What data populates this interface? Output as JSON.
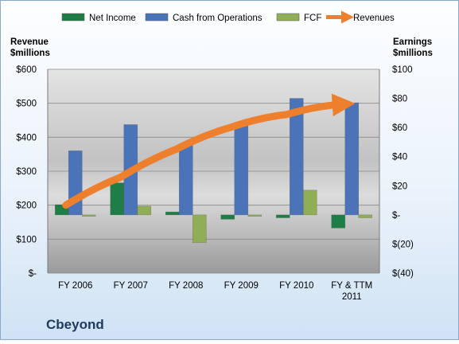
{
  "chart_data": {
    "type": "bar",
    "title": "Cbeyond",
    "categories": [
      "FY 2006",
      "FY 2007",
      "FY 2008",
      "FY 2009",
      "FY 2010",
      "FY & TTM 2011"
    ],
    "category_lines": [
      [
        "FY 2006"
      ],
      [
        "FY 2007"
      ],
      [
        "FY 2008"
      ],
      [
        "FY 2009"
      ],
      [
        "FY 2010"
      ],
      [
        "FY & TTM",
        "2011"
      ]
    ],
    "left_axis": {
      "label_lines": [
        "Revenue",
        "$millions"
      ],
      "ylim": [
        0,
        600
      ],
      "ticks": [
        0,
        100,
        200,
        300,
        400,
        500,
        600
      ],
      "tick_labels": [
        "$-",
        "$100",
        "$200",
        "$300",
        "$400",
        "$500",
        "$600"
      ]
    },
    "right_axis": {
      "label_lines": [
        "Earnings",
        "$millions"
      ],
      "ylim": [
        -40,
        100
      ],
      "ticks": [
        -40,
        -20,
        0,
        20,
        40,
        60,
        80,
        100
      ],
      "tick_labels": [
        "$(40)",
        "$(20)",
        "$-",
        "$20",
        "$40",
        "$60",
        "$80",
        "$100"
      ]
    },
    "series": [
      {
        "name": "Net Income",
        "type": "bar",
        "axis": "right",
        "color": "#1e7e45",
        "values": [
          7,
          22,
          2,
          -3,
          -2,
          -9
        ]
      },
      {
        "name": "Cash from Operations",
        "type": "bar",
        "axis": "right",
        "color": "#4a73b8",
        "values": [
          44,
          62,
          48,
          62,
          80,
          77
        ]
      },
      {
        "name": "FCF",
        "type": "bar",
        "axis": "right",
        "color": "#8fae55",
        "values": [
          -1,
          6,
          -19,
          -1,
          17,
          -2
        ]
      },
      {
        "name": "Revenues",
        "type": "line",
        "axis": "left",
        "color": "#ee7f2d",
        "values": [
          200,
          283,
          365,
          430,
          467,
          497
        ]
      }
    ],
    "legend_position": "top",
    "grid": true
  }
}
